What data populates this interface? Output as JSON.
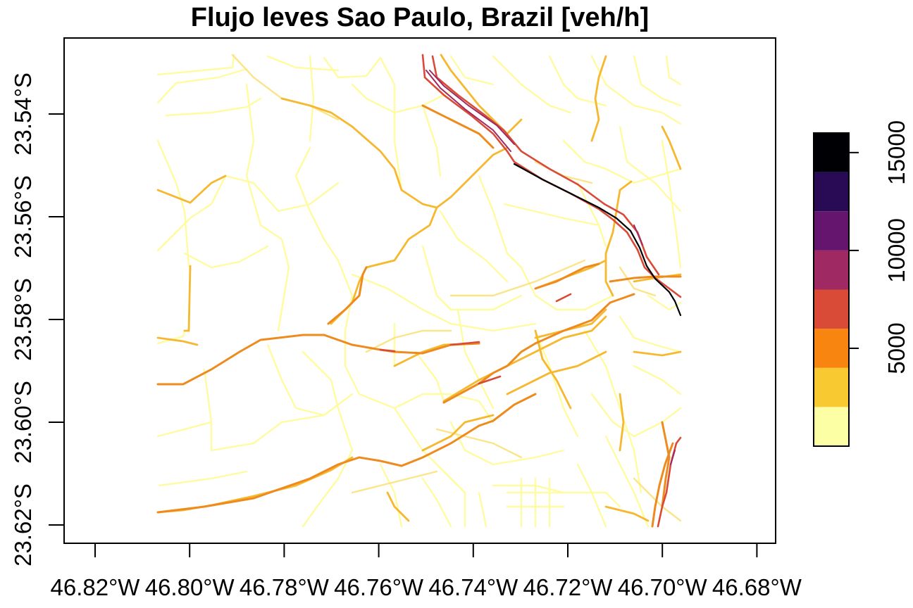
{
  "title": "Flujo leves Sao Paulo, Brazil [veh/h]",
  "x_ticks": [
    "46.82°W",
    "46.80°W",
    "46.78°W",
    "46.76°W",
    "46.74°W",
    "46.72°W",
    "46.70°W",
    "46.68°W"
  ],
  "y_ticks": [
    "23.54°S",
    "23.56°S",
    "23.58°S",
    "23.60°S",
    "23.62°S"
  ],
  "legend": {
    "ticks": [
      "5000",
      "10000",
      "15000"
    ],
    "breaks": [
      0,
      2000,
      4000,
      6000,
      8000,
      10000,
      12000,
      14000,
      16000
    ],
    "colors": [
      "#FCFFA4",
      "#F9C932",
      "#F8850F",
      "#D94A37",
      "#9F2A63",
      "#65156E",
      "#280B54",
      "#000004"
    ]
  },
  "map": {
    "background": "#ffffff",
    "road_palette": {
      "very_low": "#FFFBA0",
      "low": "#FBE58A",
      "medium": "#F5B82E",
      "high": "#EE8B1F",
      "very_high": "#D94A37",
      "extreme": "#9F2A63",
      "max": "#000004"
    }
  }
}
